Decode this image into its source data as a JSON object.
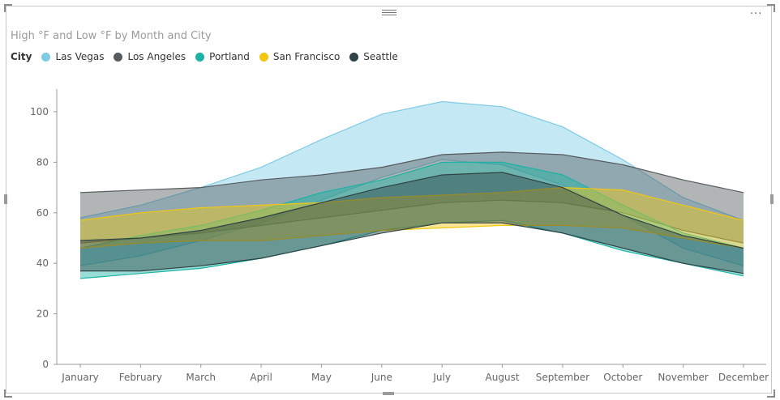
{
  "chart_data": {
    "type": "area",
    "title": "High °F and Low °F by Month and City",
    "legend_title": "City",
    "legend_position": "top-left",
    "grid": false,
    "ylim": [
      0,
      110
    ],
    "yticks": [
      0,
      20,
      40,
      60,
      80,
      100
    ],
    "categories": [
      "January",
      "February",
      "March",
      "April",
      "May",
      "June",
      "July",
      "August",
      "September",
      "October",
      "November",
      "December"
    ],
    "series": [
      {
        "name": "Las Vegas",
        "color": "#7dcbe6",
        "high": [
          58,
          63,
          70,
          78,
          89,
          99,
          104,
          102,
          94,
          81,
          66,
          57
        ],
        "low": [
          39,
          43,
          49,
          56,
          65,
          74,
          81,
          79,
          71,
          59,
          46,
          39
        ]
      },
      {
        "name": "Los Angeles",
        "color": "#555b5e",
        "high": [
          68,
          69,
          70,
          73,
          75,
          78,
          83,
          84,
          83,
          79,
          73,
          68
        ],
        "low": [
          48,
          50,
          52,
          55,
          58,
          61,
          64,
          65,
          64,
          60,
          53,
          48
        ]
      },
      {
        "name": "Portland",
        "color": "#1ab3a4",
        "high": [
          46,
          51,
          55,
          61,
          68,
          73,
          80,
          80,
          75,
          63,
          52,
          46
        ],
        "low": [
          34,
          36,
          38,
          42,
          47,
          53,
          56,
          57,
          52,
          45,
          40,
          35
        ]
      },
      {
        "name": "San Francisco",
        "color": "#f2c711",
        "high": [
          57,
          60,
          62,
          63,
          64,
          66,
          67,
          68,
          70,
          69,
          63,
          57
        ],
        "low": [
          46,
          48,
          49,
          49,
          51,
          53,
          54,
          55,
          55,
          54,
          50,
          46
        ]
      },
      {
        "name": "Seattle",
        "color": "#2f4245",
        "high": [
          49,
          50,
          53,
          58,
          64,
          70,
          75,
          76,
          70,
          59,
          51,
          46
        ],
        "low": [
          37,
          37,
          39,
          42,
          47,
          52,
          56,
          56,
          52,
          46,
          40,
          36
        ]
      }
    ]
  }
}
